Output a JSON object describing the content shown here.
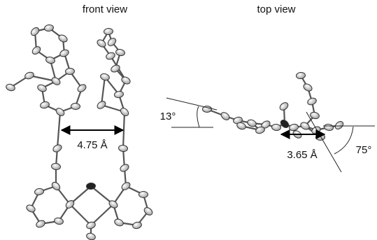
{
  "panels": [
    {
      "title": "front view",
      "distance_label": "4.75 Å"
    },
    {
      "title": "top view",
      "angle_left_label": "13°",
      "distance_label": "3.65 Å",
      "angle_right_label": "75°"
    }
  ]
}
